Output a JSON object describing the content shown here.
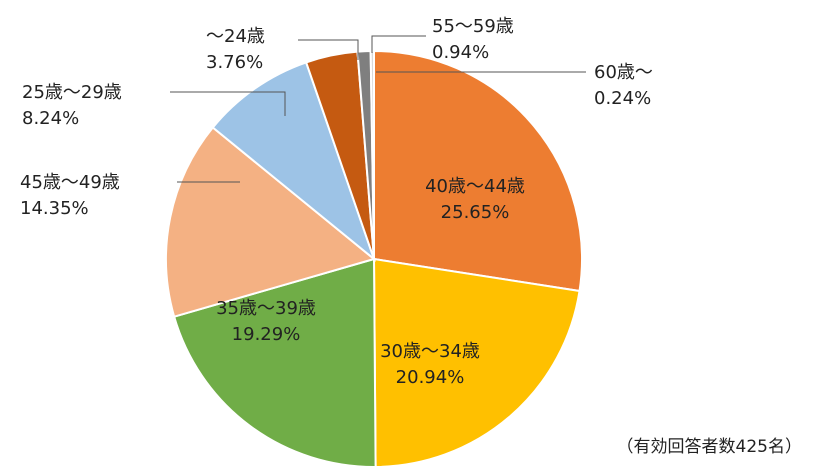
{
  "chart_data": {
    "type": "pie",
    "categories": [
      "40歳～44歳",
      "30歳～34歳",
      "35歳～39歳",
      "45歳～49歳",
      "25歳～29歳",
      "～24歳",
      "55～59歳",
      "60歳～"
    ],
    "values": [
      25.65,
      20.94,
      19.29,
      14.35,
      8.24,
      3.76,
      0.94,
      0.24
    ],
    "value_labels": [
      "25.65%",
      "20.94%",
      "19.29%",
      "14.35%",
      "8.24%",
      "3.76%",
      "0.94%",
      "0.24%"
    ],
    "colors": [
      "#ED7D31",
      "#FFC000",
      "#70AD47",
      "#F4B183",
      "#9DC3E6",
      "#C55A11",
      "#7F7F7F",
      "#D9D9D9"
    ],
    "start_angle_deg": 0,
    "direction": "clockwise",
    "inside_labels": [
      true,
      true,
      true,
      false,
      false,
      false,
      false,
      false
    ],
    "leader_lines": [
      false,
      false,
      false,
      true,
      true,
      true,
      true,
      true
    ],
    "note": "（有効回答者数425名）"
  }
}
